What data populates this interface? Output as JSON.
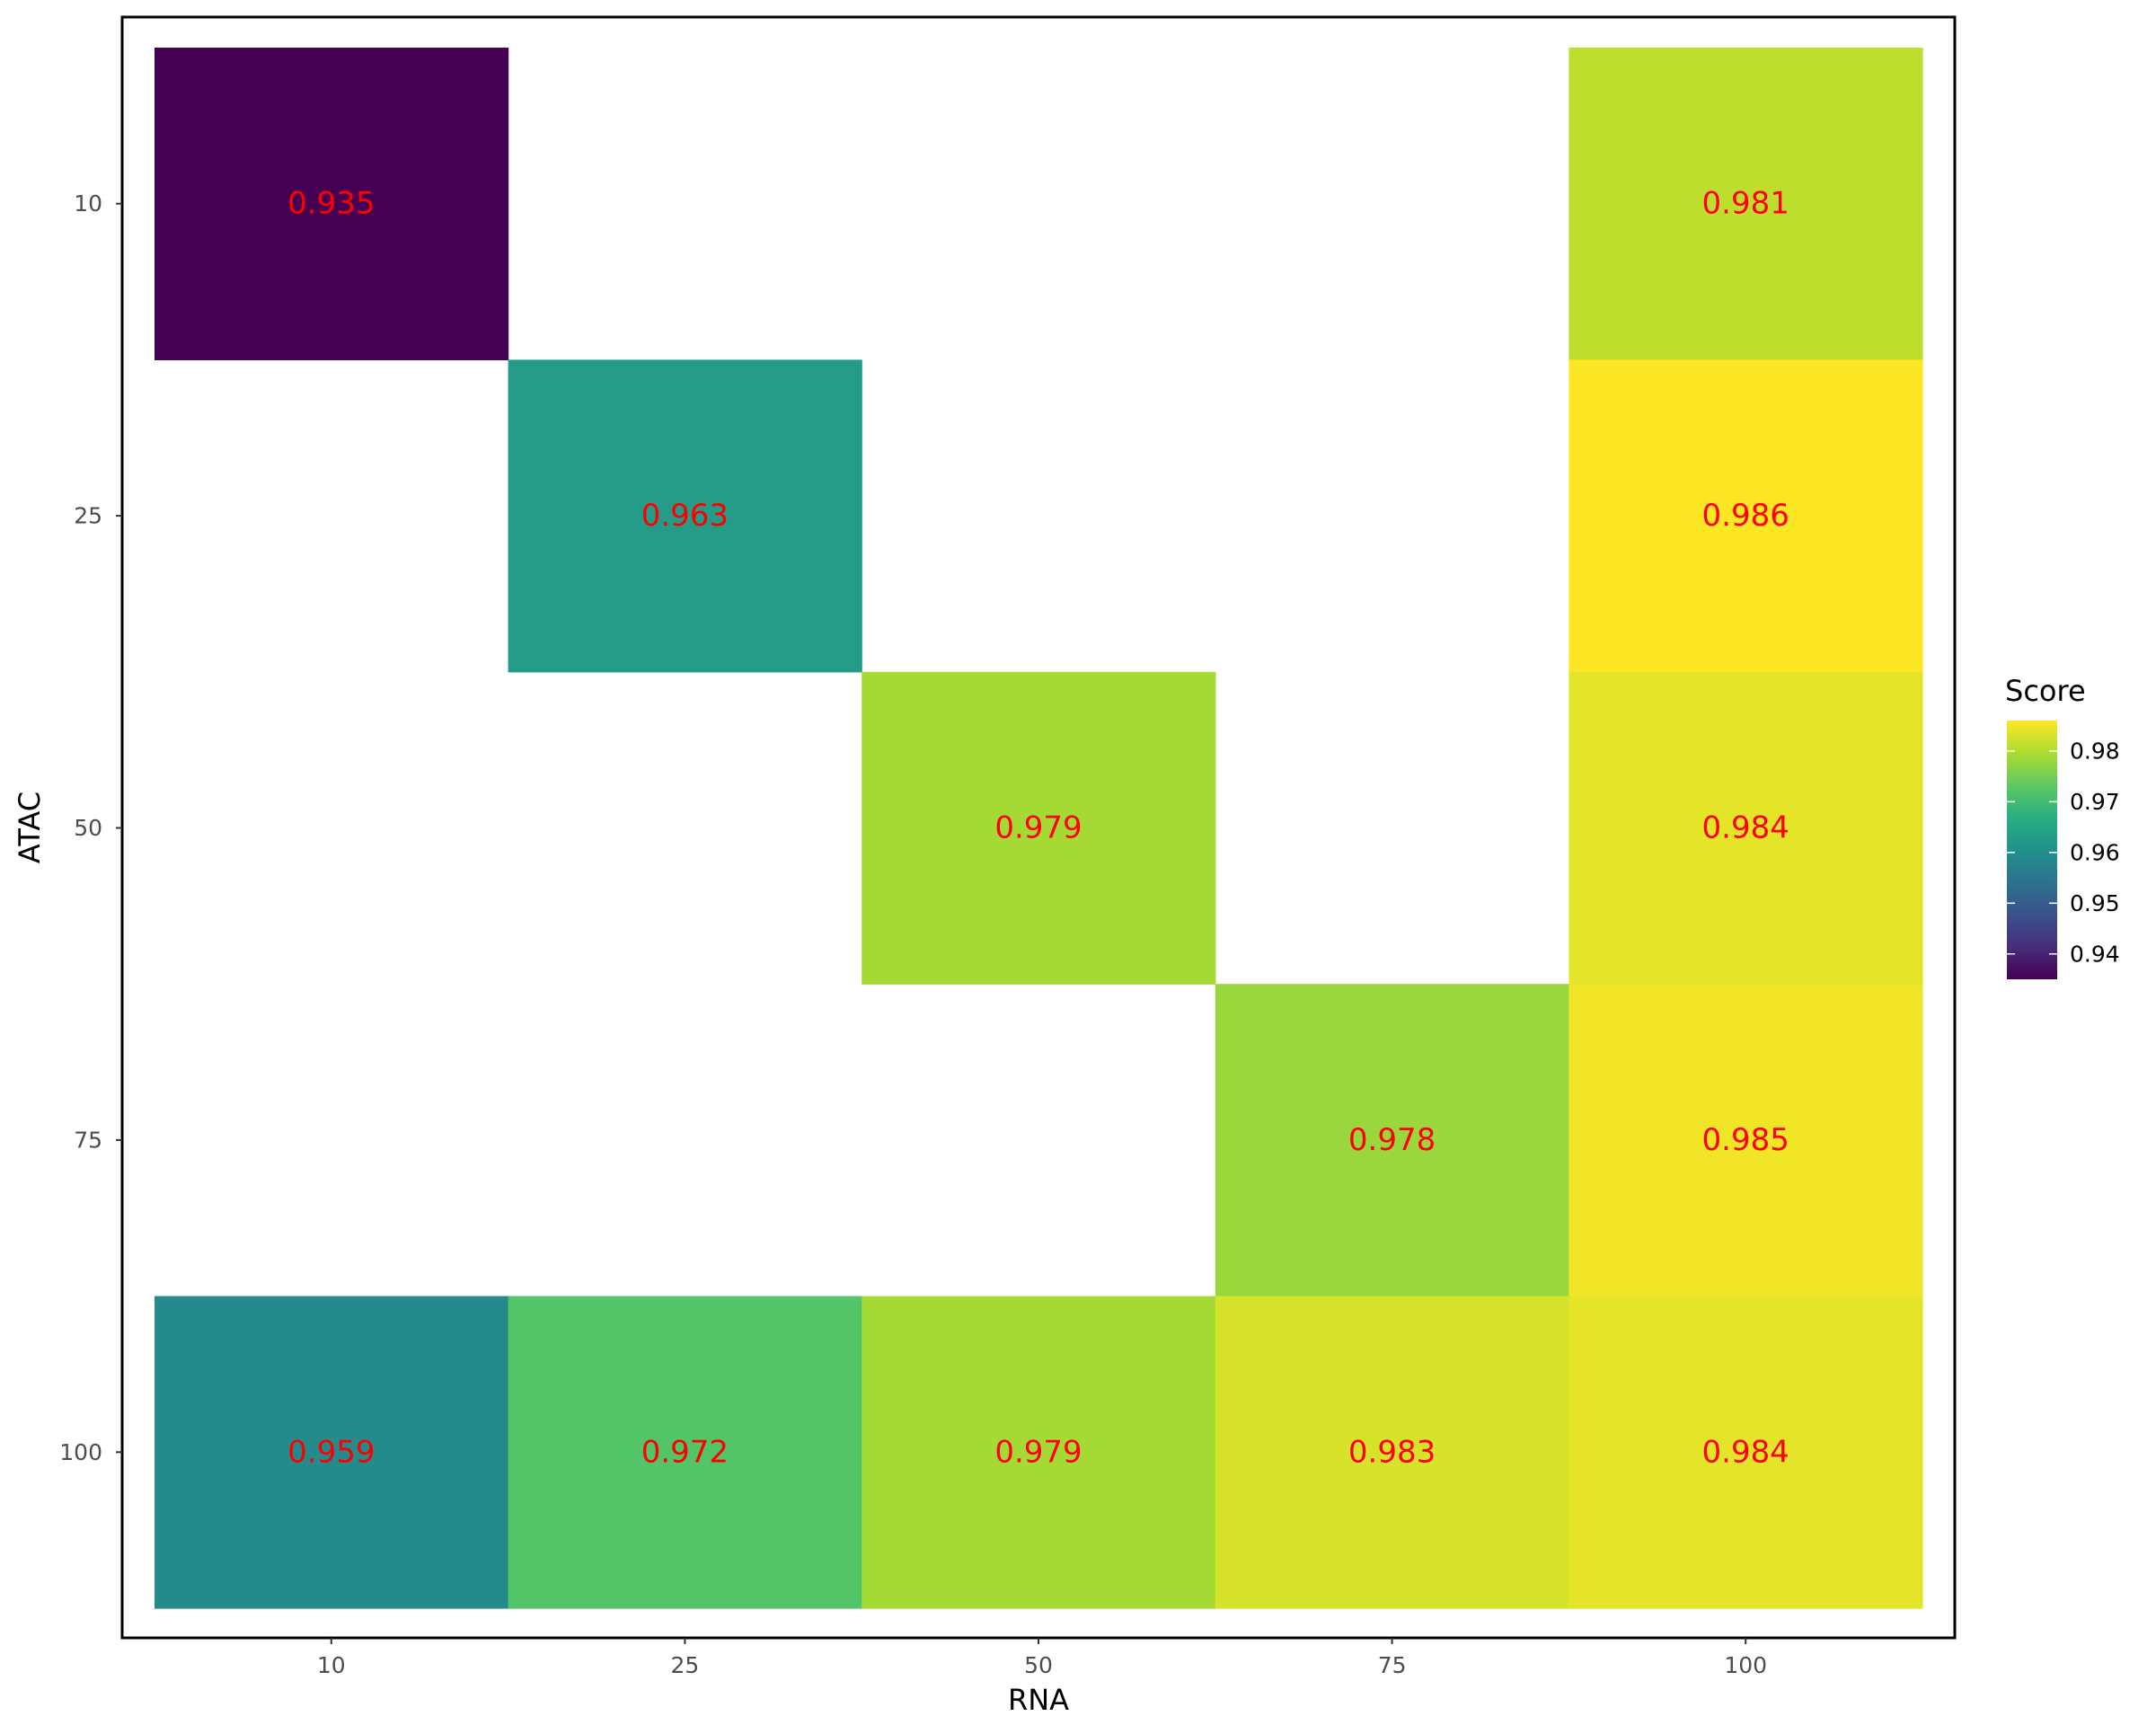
{
  "chart_data": {
    "type": "heatmap",
    "title": "",
    "xlabel": "RNA",
    "ylabel": "ATAC",
    "x_categories": [
      "10",
      "25",
      "50",
      "75",
      "100"
    ],
    "y_categories": [
      "10",
      "25",
      "50",
      "75",
      "100"
    ],
    "cells": [
      {
        "x": "10",
        "y": "10",
        "value": 0.935,
        "label": "0.935"
      },
      {
        "x": "100",
        "y": "10",
        "value": 0.981,
        "label": "0.981"
      },
      {
        "x": "25",
        "y": "25",
        "value": 0.963,
        "label": "0.963"
      },
      {
        "x": "100",
        "y": "25",
        "value": 0.986,
        "label": "0.986"
      },
      {
        "x": "50",
        "y": "50",
        "value": 0.979,
        "label": "0.979"
      },
      {
        "x": "100",
        "y": "50",
        "value": 0.984,
        "label": "0.984"
      },
      {
        "x": "75",
        "y": "75",
        "value": 0.978,
        "label": "0.978"
      },
      {
        "x": "100",
        "y": "75",
        "value": 0.985,
        "label": "0.985"
      },
      {
        "x": "10",
        "y": "100",
        "value": 0.959,
        "label": "0.959"
      },
      {
        "x": "25",
        "y": "100",
        "value": 0.972,
        "label": "0.972"
      },
      {
        "x": "50",
        "y": "100",
        "value": 0.979,
        "label": "0.979"
      },
      {
        "x": "75",
        "y": "100",
        "value": 0.983,
        "label": "0.983"
      },
      {
        "x": "100",
        "y": "100",
        "value": 0.984,
        "label": "0.984"
      }
    ],
    "colorscale": "viridis",
    "color_range": [
      0.935,
      0.986
    ],
    "label_color": "#ff0000",
    "legend": {
      "title": "Score",
      "position": "right",
      "ticks": [
        {
          "value": 0.94,
          "label": "0.94"
        },
        {
          "value": 0.95,
          "label": "0.95"
        },
        {
          "value": 0.96,
          "label": "0.96"
        },
        {
          "value": 0.97,
          "label": "0.97"
        },
        {
          "value": 0.98,
          "label": "0.98"
        }
      ]
    },
    "grid": false,
    "panel_border": true
  }
}
